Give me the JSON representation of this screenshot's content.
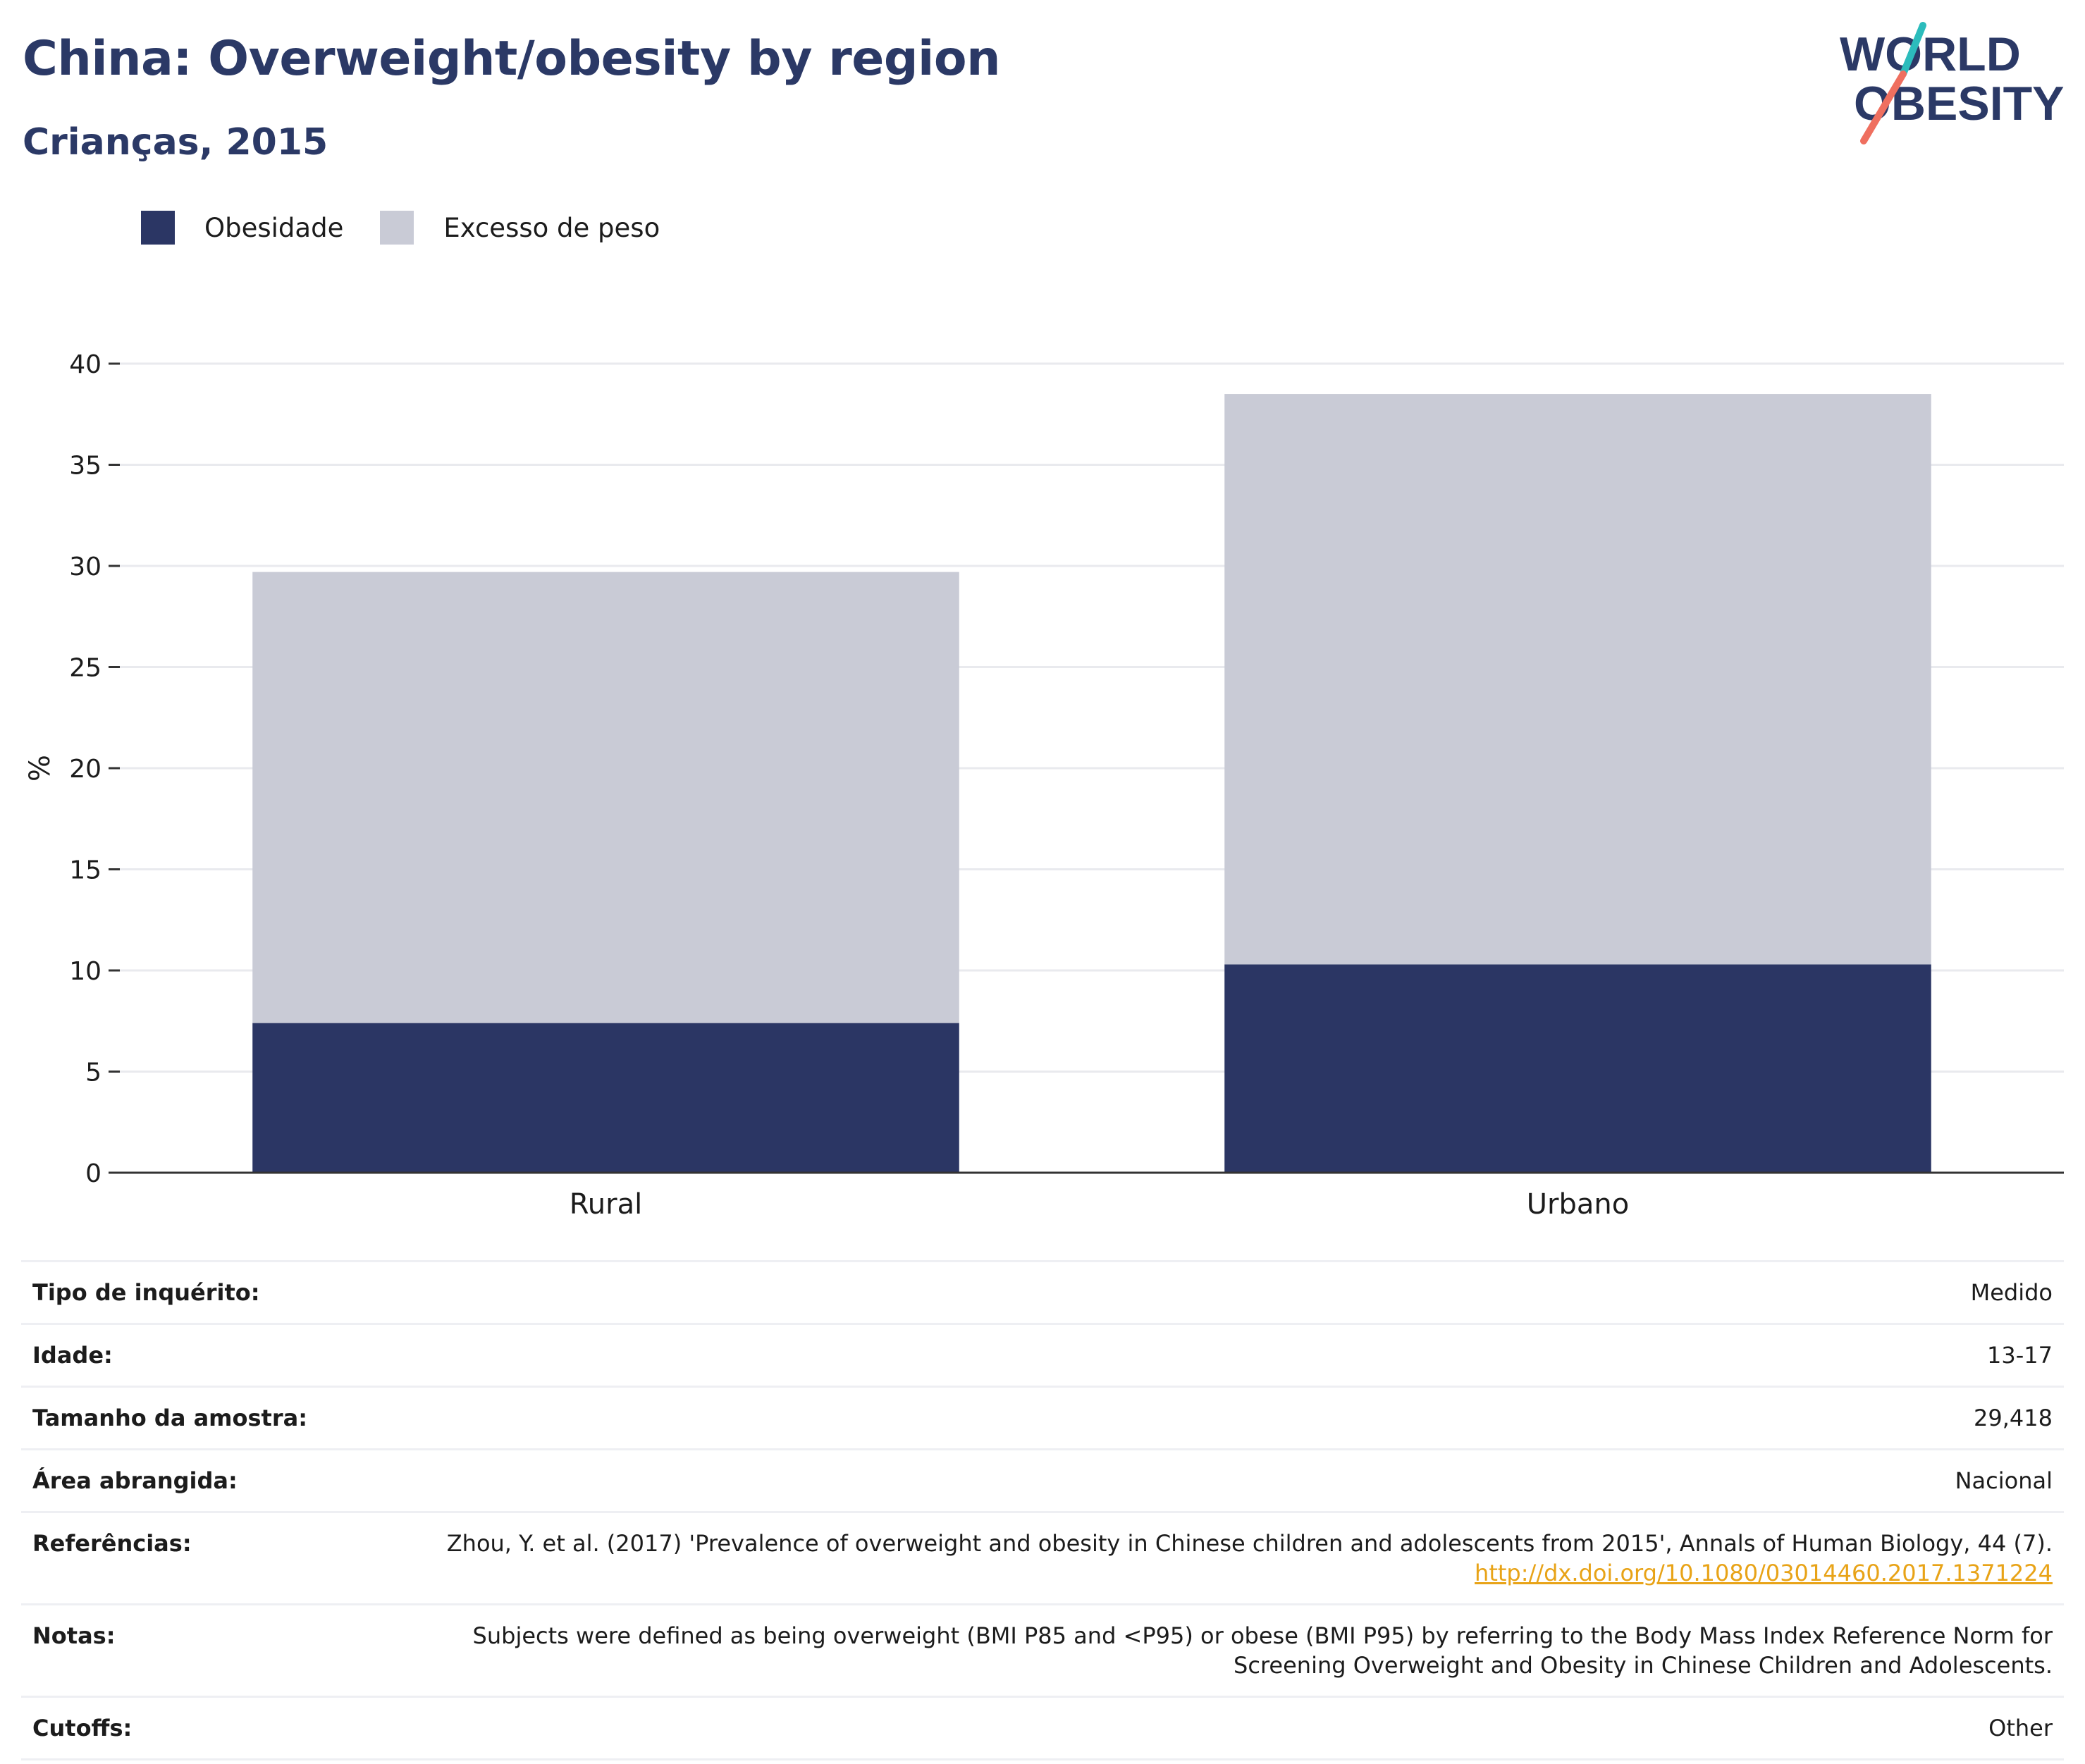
{
  "title": "China: Overweight/obesity by region",
  "subtitle": "Crianças, 2015",
  "logo": {
    "line1": "WORLD",
    "line2": "OBESITY"
  },
  "colors": {
    "title": "#2b3966",
    "obesity": "#2b3664",
    "overweight": "#c9cbd6",
    "grid": "#e9eaee",
    "axis": "#333333",
    "logo_teal": "#2cbcbc",
    "logo_coral": "#ef6f5f",
    "link": "#e8a317"
  },
  "legend": [
    {
      "label": "Obesidade",
      "color": "#2b3664"
    },
    {
      "label": "Excesso de peso",
      "color": "#c9cbd6"
    }
  ],
  "chart_data": {
    "type": "bar",
    "stacked": true,
    "categories": [
      "Rural",
      "Urbano"
    ],
    "series": [
      {
        "name": "Obesidade",
        "values": [
          7.4,
          10.3
        ]
      },
      {
        "name": "Excesso de peso",
        "values": [
          22.3,
          28.2
        ]
      }
    ],
    "ylabel": "%",
    "xlabel": "",
    "ylim": [
      0,
      40
    ],
    "yticks": [
      0,
      5,
      10,
      15,
      20,
      25,
      30,
      35,
      40
    ],
    "grid": true,
    "legend_position": "top-left"
  },
  "meta": {
    "survey_type": {
      "label": "Tipo de inquérito:",
      "value": "Medido"
    },
    "age": {
      "label": "Idade:",
      "value": "13-17"
    },
    "sample_size": {
      "label": "Tamanho da amostra:",
      "value": "29,418"
    },
    "area": {
      "label": "Área abrangida:",
      "value": "Nacional"
    },
    "references": {
      "label": "Referências:",
      "text": "Zhou, Y. et al. (2017) 'Prevalence of overweight and obesity in Chinese children and adolescents from 2015', Annals of Human Biology, 44 (7). ",
      "link": "http://dx.doi.org/10.1080/03014460.2017.1371224"
    },
    "notes": {
      "label": "Notas:",
      "value": "Subjects were defined as being overweight (BMI P85 and <P95) or obese (BMI P95) by referring to the Body Mass Index Reference Norm for Screening Overweight and Obesity in Chinese Children and Adolescents."
    },
    "cutoffs": {
      "label": "Cutoffs:",
      "value": "Other"
    }
  }
}
